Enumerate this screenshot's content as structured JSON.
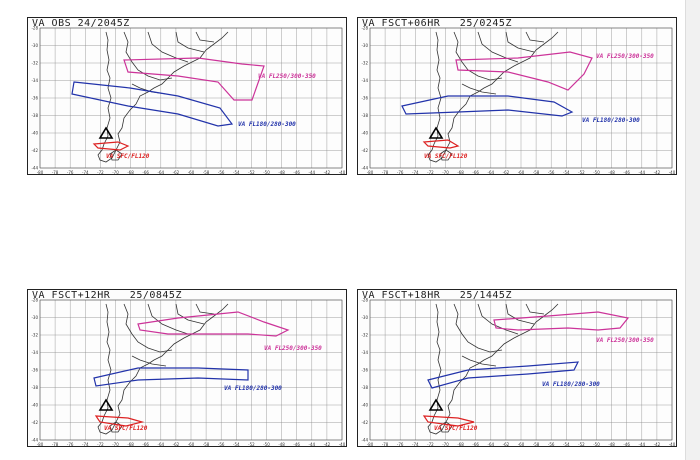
{
  "panels": [
    {
      "title": "VA OBS 24/2045Z",
      "labels": {
        "high": "VA FL250/300-350",
        "mid": "VA FL180/280-300",
        "low": "VA SFC/FL120"
      }
    },
    {
      "title": "VA FSCT+06HR   25/0245Z",
      "labels": {
        "high": "VA FL250/300-350",
        "mid": "VA FL180/280-300",
        "low": "VA SFC/FL120"
      }
    },
    {
      "title": "VA FSCT+12HR   25/0845Z",
      "labels": {
        "high": "VA FL250/300-350",
        "mid": "VA FL180/280-300",
        "low": "VA SFC/FL120"
      }
    },
    {
      "title": "VA FSCT+18HR   25/1445Z",
      "labels": {
        "high": "VA FL250/300-350",
        "mid": "VA FL180/280-300",
        "low": "VA SFC/FL120"
      }
    }
  ],
  "axes": {
    "x_ticks": [
      "-80",
      "-78",
      "-76",
      "-74",
      "-72",
      "-70",
      "-68",
      "-66",
      "-64",
      "-62",
      "-60",
      "-58",
      "-56",
      "-54",
      "-52",
      "-50",
      "-48",
      "-46",
      "-44",
      "-42",
      "-40"
    ],
    "y_ticks": [
      "-28",
      "-30",
      "-32",
      "-34",
      "-36",
      "-38",
      "-40",
      "-42",
      "-44"
    ]
  },
  "colors": {
    "high": "#cc3399",
    "mid": "#2233aa",
    "low": "#dd2222",
    "grid": "#888888",
    "coast": "#333333"
  }
}
